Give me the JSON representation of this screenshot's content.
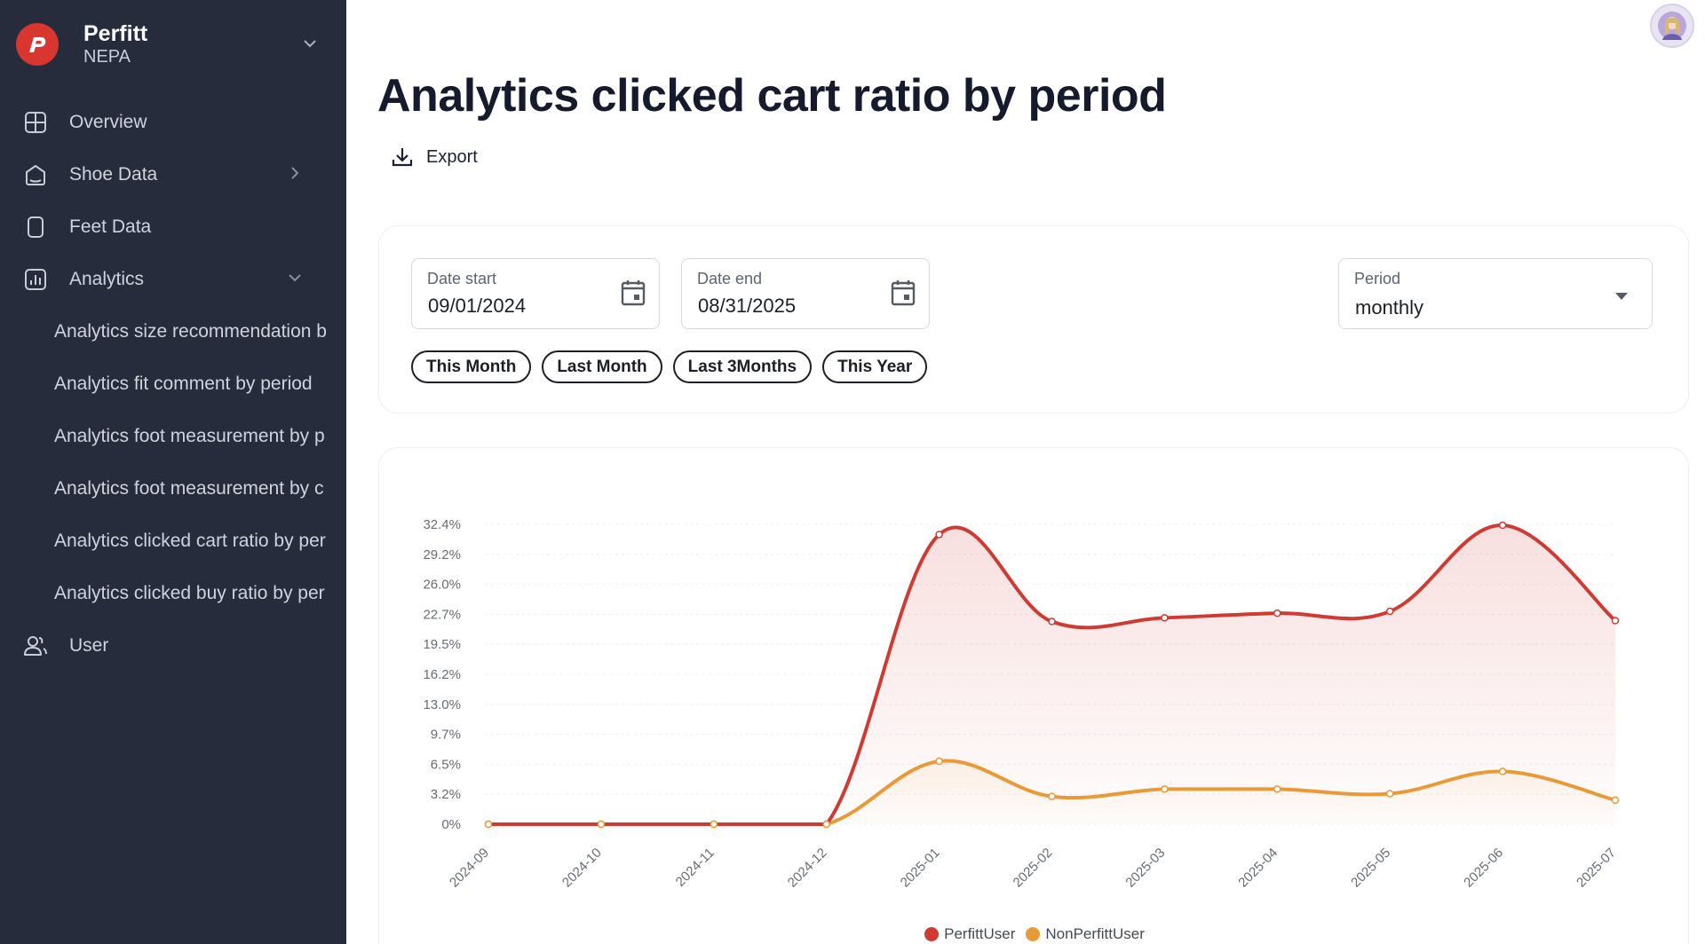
{
  "brand": {
    "name": "Perfitt",
    "org": "NEPA"
  },
  "nav": {
    "overview": "Overview",
    "shoe_data": "Shoe Data",
    "feet_data": "Feet Data",
    "analytics": "Analytics",
    "user": "User",
    "analytics_items": [
      "Analytics size recommendation b",
      "Analytics fit comment by period",
      "Analytics foot measurement by p",
      "Analytics foot measurement by c",
      "Analytics clicked cart ratio by per",
      "Analytics clicked buy ratio by per"
    ]
  },
  "page": {
    "title": "Analytics clicked cart ratio by period",
    "export_label": "Export"
  },
  "filters": {
    "date_start": {
      "label": "Date start",
      "value": "09/01/2024"
    },
    "date_end": {
      "label": "Date end",
      "value": "08/31/2025"
    },
    "period": {
      "label": "Period",
      "value": "monthly"
    },
    "chips": [
      "This Month",
      "Last Month",
      "Last 3Months",
      "This Year"
    ]
  },
  "colors": {
    "perfitt": "#cf3a33",
    "non_perfitt": "#e89a38",
    "sidebar_bg": "#262c3b"
  },
  "chart_data": {
    "type": "line",
    "x": [
      "2024-09",
      "2024-10",
      "2024-11",
      "2024-12",
      "2025-01",
      "2025-02",
      "2025-03",
      "2025-04",
      "2025-05",
      "2025-06",
      "2025-07"
    ],
    "y_ticks": [
      "0%",
      "3.2%",
      "6.5%",
      "9.7%",
      "13.0%",
      "16.2%",
      "19.5%",
      "22.7%",
      "26.0%",
      "29.2%",
      "32.4%"
    ],
    "ylim": [
      0,
      32.4
    ],
    "series": [
      {
        "name": "PerfittUser",
        "color": "#cf3a33",
        "values": [
          0,
          0,
          0,
          0,
          31.3,
          21.9,
          22.3,
          22.8,
          23.0,
          32.3,
          22.0
        ]
      },
      {
        "name": "NonPerfittUser",
        "color": "#e89a38",
        "values": [
          0,
          0,
          0,
          0,
          6.8,
          3.0,
          3.8,
          3.8,
          3.3,
          5.7,
          2.6
        ]
      }
    ],
    "legend_position": "bottom-center",
    "grid": true
  }
}
